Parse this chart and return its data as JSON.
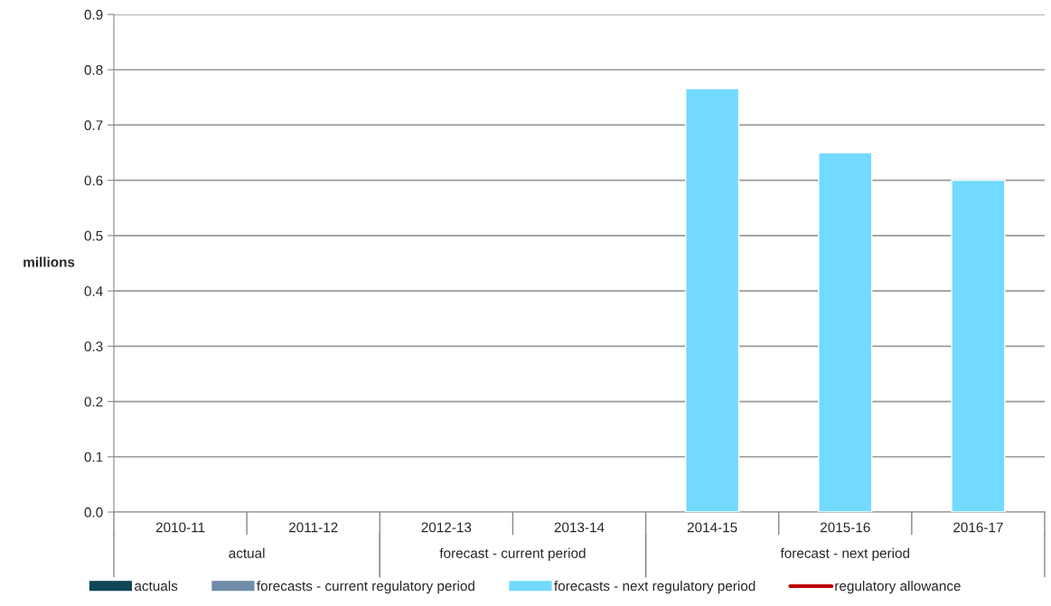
{
  "chart_data": {
    "type": "bar",
    "ylabel": "millions",
    "categories": [
      "2010-11",
      "2011-12",
      "2012-13",
      "2013-14",
      "2014-15",
      "2015-16",
      "2016-17"
    ],
    "series": [
      {
        "name": "actuals",
        "color": "#0e4655",
        "values": [
          null,
          null,
          null,
          null,
          null,
          null,
          null
        ]
      },
      {
        "name": "forecasts - current regulatory period",
        "color": "#6f8ca8",
        "values": [
          null,
          null,
          null,
          null,
          null,
          null,
          null
        ]
      },
      {
        "name": "forecasts - next regulatory period",
        "color": "#72daff",
        "values": [
          null,
          null,
          null,
          null,
          0.766,
          0.65,
          0.6
        ]
      },
      {
        "name": "regulatory allowance",
        "type": "line",
        "color": "#c00000",
        "values": [
          null,
          null,
          null,
          null,
          null,
          null,
          null
        ]
      }
    ],
    "annotations": [
      "actual",
      "forecast - current period",
      "forecast - next period"
    ],
    "ylim": [
      0,
      0.9
    ],
    "yticks": [
      {
        "value": 0,
        "label": "0.0"
      },
      0.1,
      0.2,
      0.3,
      0.4,
      0.5,
      0.6,
      0.7,
      0.8,
      0.9
    ],
    "grid": "y",
    "legend": "bottom"
  }
}
